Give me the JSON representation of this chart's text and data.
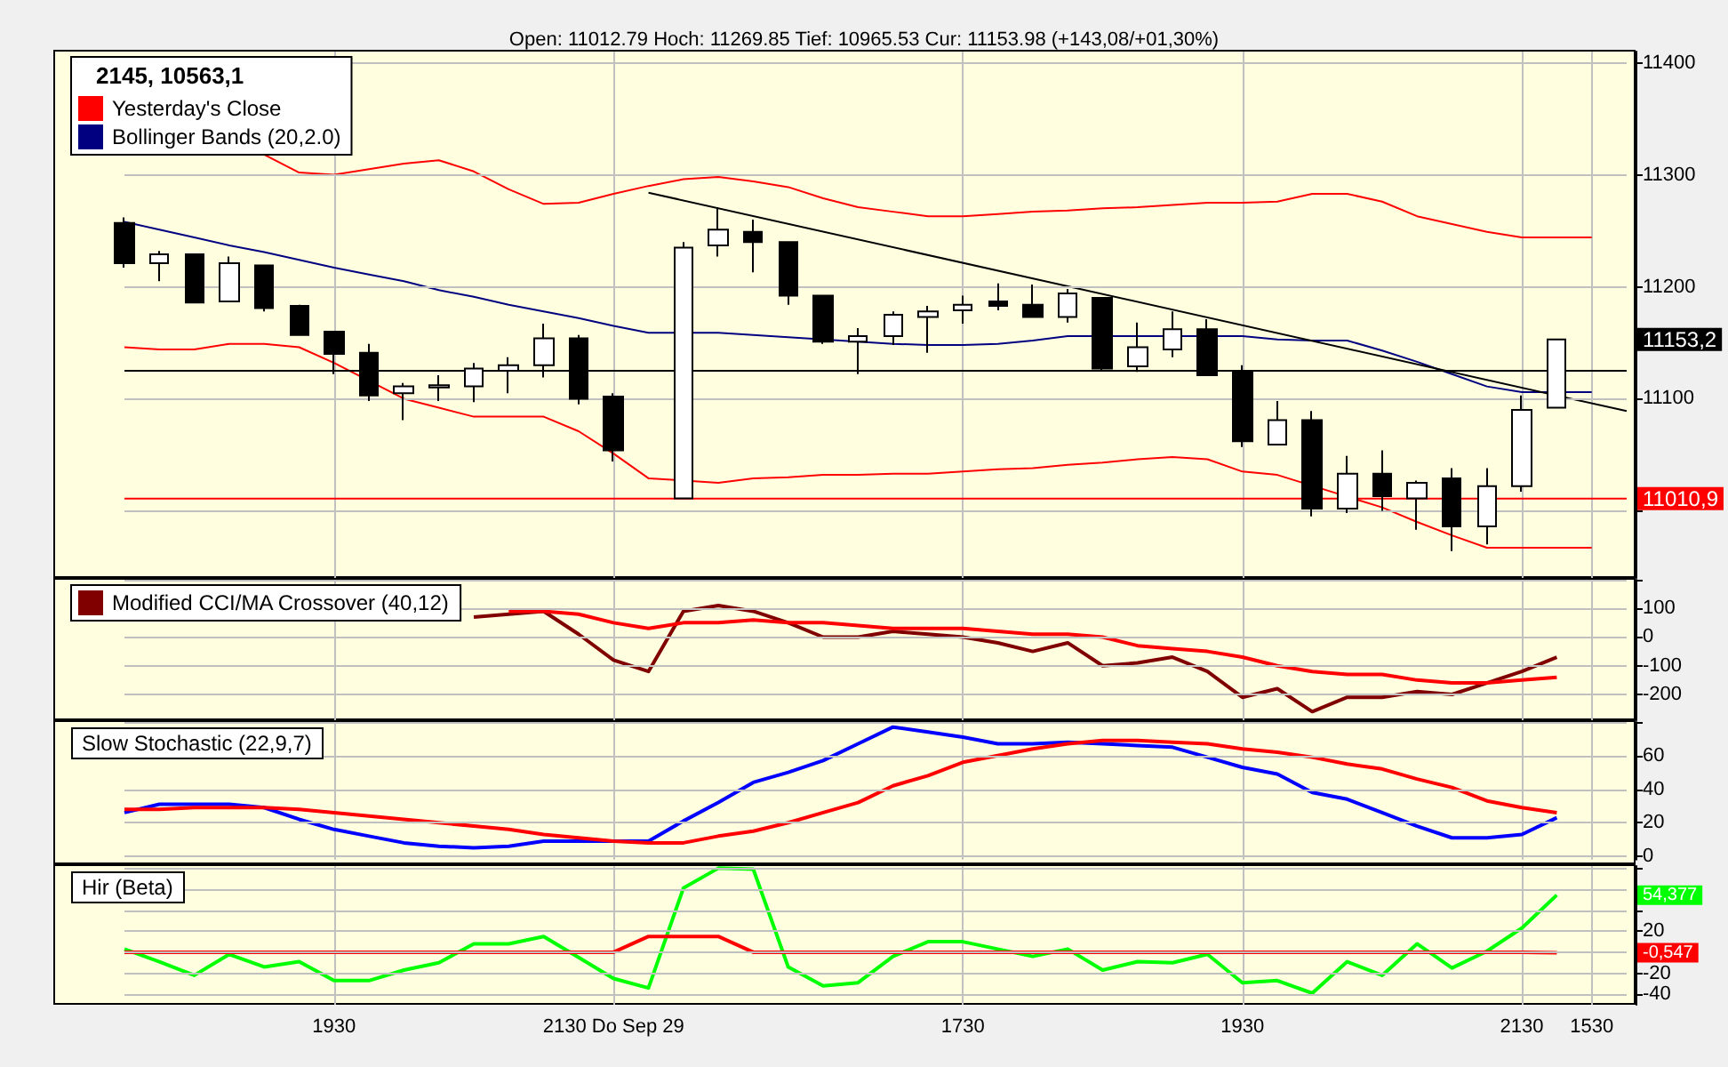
{
  "chart_data": [
    {
      "type": "candlestick",
      "title": "Open: 11012.79 Hoch: 11269.85 Tief: 10965.53 Cur: 11153.98 (+143,08/+01,30%)",
      "categories": [
        null,
        null,
        null,
        null,
        null,
        null,
        null,
        null,
        null,
        null,
        null,
        null,
        null,
        null,
        null,
        null,
        null,
        null,
        null,
        null,
        null,
        null,
        null,
        null,
        null,
        null,
        null,
        null,
        null,
        null,
        null,
        null,
        null,
        null,
        null,
        null,
        null,
        null,
        null,
        null,
        null,
        null,
        null,
        null
      ],
      "ohlc": [
        [
          11257,
          11262,
          11217,
          11221
        ],
        [
          11221,
          11232,
          11205,
          11229
        ],
        [
          11229,
          11229,
          11186,
          11186
        ],
        [
          11187,
          11227,
          11187,
          11221
        ],
        [
          11219,
          11219,
          11178,
          11181
        ],
        [
          11183,
          11184,
          11157,
          11157
        ],
        [
          11160,
          11160,
          11122,
          11140
        ],
        [
          11141,
          11149,
          11098,
          11103
        ],
        [
          11105,
          11114,
          11081,
          11111
        ],
        [
          11110,
          11121,
          11098,
          11112
        ],
        [
          11111,
          11132,
          11097,
          11127
        ],
        [
          11125,
          11137,
          11105,
          11130
        ],
        [
          11130,
          11167,
          11119,
          11154
        ],
        [
          11154,
          11157,
          11095,
          11100
        ],
        [
          11102,
          11105,
          11044,
          11054
        ],
        null,
        [
          11011,
          11240,
          11011,
          11235
        ],
        [
          11237,
          11271,
          11227,
          11251
        ],
        [
          11249,
          11260,
          11213,
          11240
        ],
        [
          11240,
          11240,
          11184,
          11192
        ],
        [
          11192,
          11192,
          11149,
          11151
        ],
        [
          11151,
          11163,
          11122,
          11156
        ],
        [
          11156,
          11178,
          11148,
          11175
        ],
        [
          11173,
          11183,
          11141,
          11178
        ],
        [
          11179,
          11192,
          11167,
          11184
        ],
        [
          11187,
          11203,
          11179,
          11183
        ],
        [
          11184,
          11202,
          11173,
          11173
        ],
        [
          11173,
          11198,
          11168,
          11194
        ],
        [
          11190,
          11190,
          11125,
          11127
        ],
        [
          11129,
          11168,
          11124,
          11146
        ],
        [
          11144,
          11178,
          11137,
          11162
        ],
        [
          11162,
          11171,
          11121,
          11121
        ],
        [
          11125,
          11130,
          11057,
          11062
        ],
        [
          11059,
          11098,
          11059,
          11081
        ],
        [
          11081,
          11089,
          10995,
          11002
        ],
        [
          11002,
          11049,
          10998,
          11033
        ],
        [
          11033,
          11054,
          11000,
          11013
        ],
        [
          11011,
          11027,
          10983,
          11025
        ],
        [
          11029,
          11038,
          10964,
          10986
        ],
        [
          10986,
          11038,
          10970,
          11022
        ],
        [
          11022,
          11103,
          11017,
          11090
        ],
        [
          11092,
          11153,
          11092,
          11153
        ],
        null,
        null
      ],
      "series": [
        {
          "type": "line",
          "name": "Yesterday's Close",
          "color": "#ff0000",
          "values": [
            11010.9,
            11010.9,
            11010.9,
            11010.9,
            11010.9,
            11010.9,
            11010.9,
            11010.9,
            11010.9,
            11010.9,
            11010.9,
            11010.9,
            11010.9,
            11010.9,
            11010.9,
            11010.9,
            null,
            11010.9,
            11010.9,
            11010.9,
            11010.9,
            11010.9,
            11010.9,
            11010.9,
            11010.9,
            11010.9,
            11010.9,
            11010.9,
            11010.9,
            11010.9,
            11010.9,
            11010.9,
            11010.9,
            11010.9,
            null,
            null,
            11010.9,
            null,
            null,
            null,
            11010.9,
            11010.9,
            11010.9,
            11010.9
          ],
          "value_labels": [
            null,
            null,
            null,
            null,
            null,
            null,
            null,
            null,
            null,
            null,
            null,
            null,
            null,
            null,
            null,
            null,
            null,
            null,
            null,
            null,
            null,
            null,
            null,
            null,
            null,
            null,
            null,
            null,
            null,
            null,
            null,
            null,
            null,
            null,
            null,
            null,
            null,
            null,
            null,
            null,
            null,
            null,
            null,
            "11010,9"
          ]
        },
        {
          "type": "line",
          "name": "Bollinger Bands (20,2.0)",
          "color": "#000080",
          "values": [
            11258,
            11251,
            11244,
            11237,
            11231,
            11224,
            11217,
            11211,
            11205,
            11197,
            11191,
            11184,
            11178,
            11172,
            11165,
            11159,
            null,
            11159,
            11157,
            11155,
            null,
            null,
            11149,
            11148,
            11148,
            11149,
            11152,
            11156,
            null,
            11156,
            null,
            null,
            11156,
            11153,
            11152,
            11152,
            11143,
            11133,
            11122,
            11111,
            11106,
            null,
            11106,
            null
          ]
        },
        {
          "type": "line",
          "color": "#ff0000",
          "values": [
            null,
            null,
            null,
            null,
            11318,
            11302,
            11300,
            11305,
            11310,
            11313,
            11303,
            11287,
            11274,
            11275,
            11283,
            11290,
            11296,
            11298,
            11294,
            11289,
            11279,
            11271,
            11267,
            11263,
            11263,
            11265,
            11267,
            11268,
            11270,
            11271,
            11273,
            11275,
            11275,
            11276,
            11283,
            11283,
            11276,
            11263,
            11256,
            11249,
            11244,
            11244,
            11244,
            null
          ]
        },
        {
          "type": "line",
          "color": "#ff0000",
          "values": [
            11146,
            11144,
            11144,
            11149,
            11149,
            11146,
            11132,
            null,
            11100,
            11092,
            11084,
            11084,
            11084,
            11071,
            11051,
            11029,
            null,
            11025,
            11029,
            11030,
            11032,
            11032,
            11033,
            11033,
            11035,
            11037,
            11038,
            11041,
            11043,
            11046,
            11048,
            11046,
            11035,
            11032,
            null,
            null,
            11003,
            10990,
            10978,
            10967,
            10967,
            10967,
            10967,
            null
          ]
        },
        {
          "type": "line",
          "color": "#000000",
          "values": [
            null,
            null,
            null,
            null,
            null,
            null,
            null,
            null,
            null,
            null,
            null,
            null,
            null,
            null,
            null,
            11284,
            null,
            null,
            null,
            null,
            null,
            null,
            null,
            null,
            null,
            null,
            null,
            null,
            null,
            null,
            null,
            null,
            null,
            null,
            null,
            null,
            null,
            null,
            null,
            null,
            null,
            null,
            null,
            11089
          ]
        }
      ],
      "ref_lines": [
        {
          "axis": "y",
          "value": 11125,
          "color": "#000000"
        }
      ],
      "annotations": [
        "2145, 10563,1",
        "11153,2"
      ],
      "ylim": [
        10940,
        11410
      ],
      "yticks": [
        {
          "value": 11000,
          "label": null
        },
        11100,
        11200,
        11300,
        11400
      ],
      "grid": true,
      "legend": "top left",
      "tick_labels": "y"
    },
    {
      "type": "line",
      "categories": [
        null,
        null,
        null,
        null,
        null,
        null,
        null,
        null,
        null,
        null,
        null,
        null,
        null,
        null,
        null,
        null,
        null,
        null,
        null,
        null,
        null,
        null,
        null,
        null,
        null,
        null,
        null,
        null,
        null,
        null,
        null,
        null,
        null,
        null,
        null,
        null,
        null,
        null,
        null,
        null,
        null,
        null,
        null,
        null
      ],
      "series": [
        {
          "name": "Modified CCI/MA Crossover (40,12)",
          "color": "#800000",
          "values": [
            null,
            null,
            null,
            null,
            null,
            null,
            null,
            null,
            null,
            null,
            70,
            80,
            90,
            10,
            -80,
            -120,
            90,
            110,
            90,
            50,
            0,
            0,
            20,
            10,
            0,
            -20,
            -50,
            -20,
            -100,
            -90,
            -70,
            -120,
            -210,
            -180,
            -260,
            -210,
            -210,
            -190,
            -200,
            -160,
            -120,
            -70,
            null,
            null
          ]
        },
        {
          "color": "#ff0000",
          "values": [
            null,
            null,
            null,
            null,
            null,
            null,
            null,
            null,
            null,
            null,
            null,
            90,
            90,
            80,
            50,
            30,
            50,
            50,
            60,
            50,
            50,
            40,
            30,
            30,
            30,
            20,
            10,
            10,
            0,
            -30,
            -40,
            -50,
            -70,
            -100,
            -120,
            -130,
            -130,
            -150,
            -160,
            -160,
            -150,
            -140,
            null,
            null
          ]
        }
      ],
      "ylim": [
        -290,
        200
      ],
      "yticks": [
        -200,
        -100,
        0,
        100,
        {
          "value": 200,
          "label": null
        }
      ],
      "grid": true,
      "legend": "top left",
      "tick_labels": "y"
    },
    {
      "type": "line",
      "title": "Slow Stochastic (22,9,7)",
      "categories": [
        null,
        null,
        null,
        null,
        null,
        null,
        null,
        null,
        null,
        null,
        null,
        null,
        null,
        null,
        null,
        null,
        null,
        null,
        null,
        null,
        null,
        null,
        null,
        null,
        null,
        null,
        null,
        null,
        null,
        null,
        null,
        null,
        null,
        null,
        null,
        null,
        null,
        null,
        null,
        null,
        null,
        null,
        null,
        null
      ],
      "series": [
        {
          "color": "#0000ff",
          "values": [
            26,
            31,
            31,
            31,
            29,
            22,
            16,
            12,
            8,
            6,
            5,
            6,
            9,
            9,
            9,
            9,
            21,
            32,
            44,
            50,
            57,
            67,
            77,
            74,
            71,
            67,
            67,
            68,
            67,
            66,
            65,
            59,
            53,
            49,
            38,
            34,
            26,
            18,
            11,
            11,
            13,
            23,
            null,
            null
          ]
        },
        {
          "color": "#ff0000",
          "values": [
            28,
            28,
            29,
            29,
            29,
            28,
            26,
            24,
            22,
            20,
            18,
            16,
            13,
            11,
            9,
            8,
            8,
            12,
            15,
            20,
            26,
            32,
            42,
            48,
            56,
            60,
            64,
            67,
            69,
            69,
            68,
            67,
            64,
            62,
            59,
            55,
            52,
            46,
            41,
            33,
            29,
            26,
            null,
            null
          ]
        }
      ],
      "ylim": [
        -2,
        80
      ],
      "yticks": [
        0,
        20,
        40,
        60,
        {
          "value": 80,
          "label": null
        }
      ],
      "grid": true,
      "tick_labels": "y"
    },
    {
      "type": "line",
      "title": "Hir (Beta)",
      "categories": [
        null,
        null,
        null,
        null,
        null,
        null,
        "1930",
        null,
        null,
        null,
        null,
        null,
        null,
        null,
        "2130 Do Sep 29",
        null,
        null,
        null,
        null,
        null,
        null,
        null,
        null,
        null,
        "1730",
        null,
        null,
        null,
        null,
        null,
        null,
        null,
        "1930",
        null,
        null,
        null,
        null,
        null,
        null,
        null,
        "2130",
        null,
        "1530",
        null
      ],
      "series": [
        {
          "color": "#00ff00",
          "values": [
            3,
            -9,
            -22,
            -2,
            -14,
            -9,
            -27,
            -27,
            -17,
            -10,
            8,
            8,
            15,
            -5,
            -25,
            -34,
            61,
            80,
            79,
            -14,
            -32,
            -29,
            -4,
            10,
            10,
            3,
            -4,
            3,
            -17,
            -9,
            -10,
            -2,
            -29,
            -27,
            -39,
            -9,
            -22,
            8,
            -15,
            1,
            23,
            54.377,
            null,
            null
          ]
        },
        {
          "color": "#ff0000",
          "values": [
            0,
            0,
            0,
            0,
            0,
            0,
            0,
            0,
            0,
            0,
            0,
            0,
            0,
            0,
            0,
            15,
            15,
            15,
            0,
            0,
            0,
            0,
            0,
            0,
            0,
            0,
            0,
            0,
            0,
            0,
            0,
            0,
            0,
            0,
            0,
            0,
            0,
            0,
            0,
            0,
            0,
            -0.547,
            null,
            null
          ]
        }
      ],
      "annotations": [
        "54,377",
        "-0,547"
      ],
      "ylim": [
        -50,
        82
      ],
      "yticks": [
        -40,
        -20,
        {
          "value": 0,
          "label": null
        },
        20,
        {
          "value": 40,
          "label": null
        },
        {
          "value": 60,
          "label": null
        },
        {
          "value": 80,
          "label": null
        }
      ],
      "grid": true
    }
  ]
}
